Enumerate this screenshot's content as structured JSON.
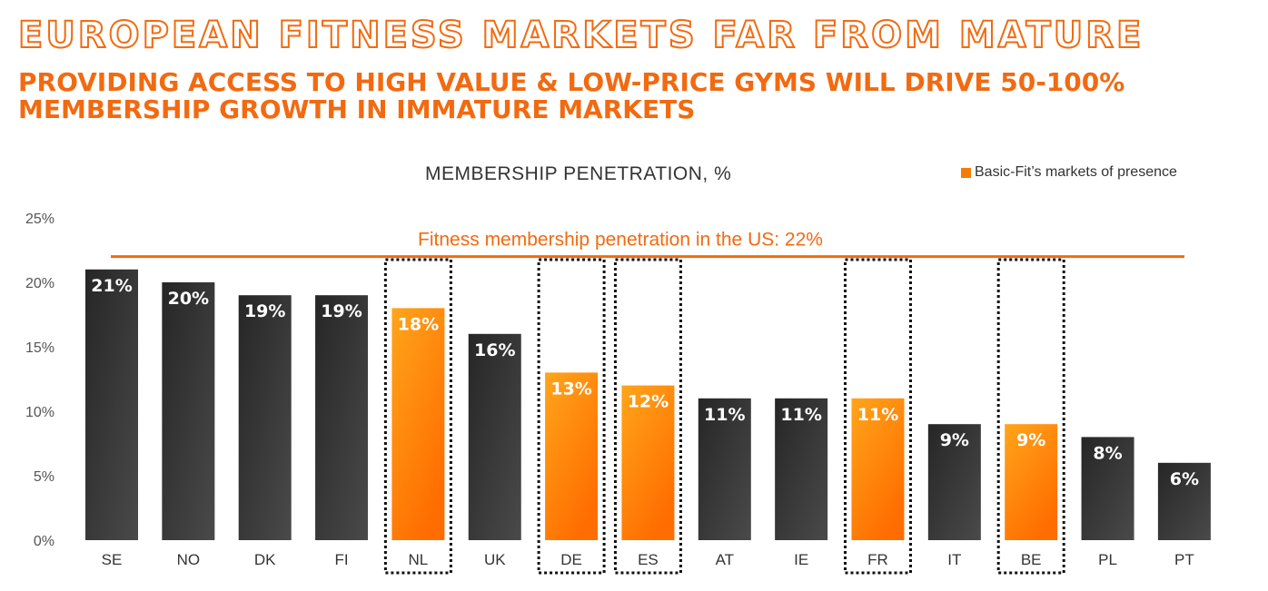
{
  "header": {
    "title": "EUROPEAN FITNESS MARKETS FAR FROM MATURE",
    "subtitle": "PROVIDING ACCESS TO HIGH VALUE & LOW-PRICE GYMS WILL DRIVE 50-100% MEMBERSHIP GROWTH IN IMMATURE MARKETS"
  },
  "colors": {
    "accent": "#f26a10",
    "bar_dark": "#2e2e2e",
    "bar_orange": "#f57c00",
    "reference_line": "#f26a10"
  },
  "chart_data": {
    "type": "bar",
    "title": "MEMBERSHIP PENETRATION, %",
    "legend": [
      {
        "label": "Basic-Fit’s markets of presence",
        "color": "#f57c00",
        "placement": "top-right"
      }
    ],
    "categories": [
      "SE",
      "NO",
      "DK",
      "FI",
      "NL",
      "UK",
      "DE",
      "ES",
      "AT",
      "IE",
      "FR",
      "IT",
      "BE",
      "PL",
      "PT"
    ],
    "values": [
      21,
      20,
      19,
      19,
      18,
      16,
      13,
      12,
      11,
      11,
      11,
      9,
      9,
      8,
      6
    ],
    "data_labels": [
      "21%",
      "20%",
      "19%",
      "19%",
      "18%",
      "16%",
      "13%",
      "12%",
      "11%",
      "11%",
      "11%",
      "9%",
      "9%",
      "8%",
      "6%"
    ],
    "highlighted": [
      "NL",
      "DE",
      "ES",
      "FR",
      "BE"
    ],
    "ylim": [
      0,
      25
    ],
    "yticks": [
      "0%",
      "5%",
      "10%",
      "15%",
      "20%",
      "25%"
    ],
    "grid": false,
    "reference_line": {
      "value": 22,
      "label": "Fitness membership penetration in the US: 22%"
    }
  }
}
